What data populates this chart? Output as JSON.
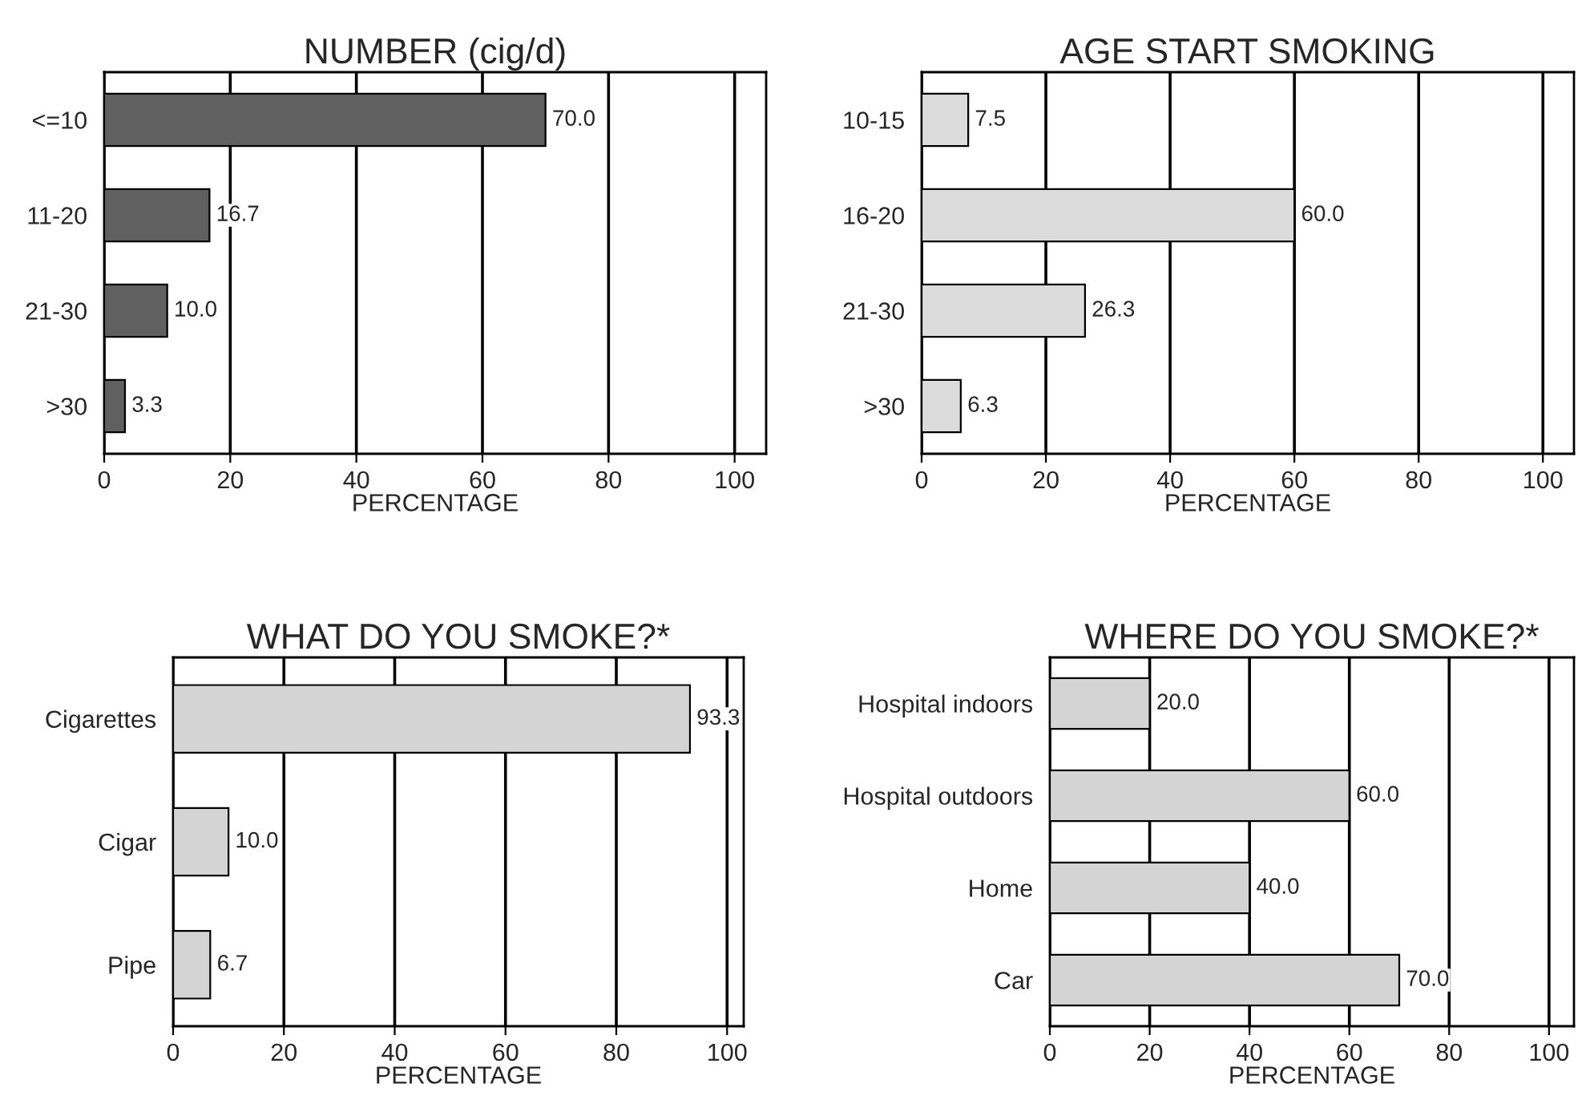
{
  "chart_data": [
    {
      "type": "bar",
      "orientation": "horizontal",
      "title": "NUMBER (cig/d)",
      "xlabel": "PERCENTAGE",
      "categories": [
        "<=10",
        "11-20",
        "21-30",
        ">30"
      ],
      "values": [
        70.0,
        16.7,
        10.0,
        3.3
      ],
      "value_labels": [
        "70.0",
        "16.7",
        "10.0",
        "3.3"
      ],
      "color": "#606060",
      "xlim": [
        0,
        105
      ],
      "xticks": [
        0,
        20,
        40,
        60,
        80,
        100
      ],
      "grid": "x",
      "legend": false
    },
    {
      "type": "bar",
      "orientation": "horizontal",
      "title": "AGE START SMOKING",
      "xlabel": "PERCENTAGE",
      "categories": [
        "10-15",
        "16-20",
        "21-30",
        ">30"
      ],
      "values": [
        7.5,
        60.0,
        26.3,
        6.3
      ],
      "value_labels": [
        "7.5",
        "60.0",
        "26.3",
        "6.3"
      ],
      "color": "#dcdcdc",
      "xlim": [
        0,
        105
      ],
      "xticks": [
        0,
        20,
        40,
        60,
        80,
        100
      ],
      "grid": "x",
      "legend": false
    },
    {
      "type": "bar",
      "orientation": "horizontal",
      "title": "WHAT DO YOU SMOKE?*",
      "xlabel": "PERCENTAGE",
      "categories": [
        "Cigarettes",
        "Cigar",
        "Pipe"
      ],
      "values": [
        93.3,
        10.0,
        6.7
      ],
      "value_labels": [
        "93.3",
        "10.0",
        "6.7"
      ],
      "color": "#d4d4d4",
      "xlim": [
        0,
        103
      ],
      "xticks": [
        0,
        20,
        40,
        60,
        80,
        100
      ],
      "grid": "x",
      "legend": false
    },
    {
      "type": "bar",
      "orientation": "horizontal",
      "title": "WHERE DO YOU SMOKE?*",
      "xlabel": "PERCENTAGE",
      "categories": [
        "Hospital indoors",
        "Hospital outdoors",
        "Home",
        "Car"
      ],
      "values": [
        20.0,
        60.0,
        40.0,
        70.0
      ],
      "value_labels": [
        "20.0",
        "60.0",
        "40.0",
        "70.0"
      ],
      "color": "#d4d4d4",
      "xlim": [
        0,
        105
      ],
      "xticks": [
        0,
        20,
        40,
        60,
        80,
        100
      ],
      "grid": "x",
      "legend": false
    }
  ]
}
